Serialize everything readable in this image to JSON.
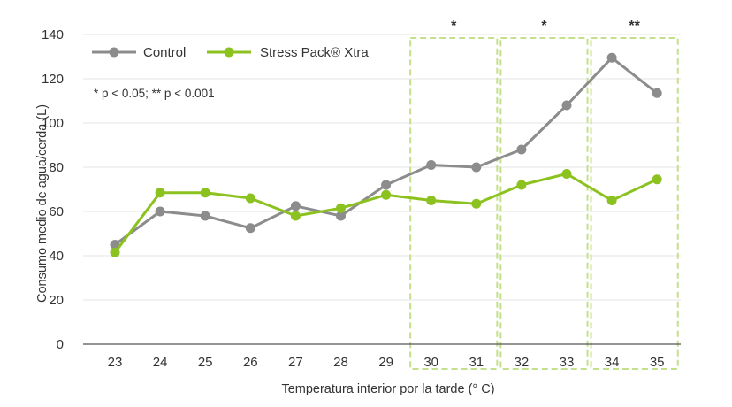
{
  "chart_data": {
    "type": "line",
    "title": "",
    "xlabel": "Temperatura interior por la tarde (° C)",
    "ylabel": "Consumo medio de agua/cerda (L)",
    "categories": [
      "23",
      "24",
      "25",
      "26",
      "27",
      "28",
      "29",
      "30",
      "31",
      "32",
      "33",
      "34",
      "35"
    ],
    "ylim": [
      0,
      140
    ],
    "yticks": [
      0,
      20,
      40,
      60,
      80,
      100,
      120,
      140
    ],
    "grid": true,
    "legend_position": "top-left",
    "series": [
      {
        "name": "Control",
        "color": "#8c8c8c",
        "values": [
          45,
          60,
          58,
          52.5,
          62.5,
          58,
          72,
          81,
          80,
          88,
          108,
          129.5,
          113.5
        ]
      },
      {
        "name": "Stress Pack® Xtra",
        "color": "#8cc21f",
        "values": [
          41.5,
          68.5,
          68.5,
          66,
          58,
          61.5,
          67.5,
          65,
          63.5,
          72,
          77,
          65,
          74.5
        ]
      }
    ],
    "note": "* p < 0.05; ** p < 0.001",
    "significance_groups": [
      {
        "categories": [
          "30",
          "31"
        ],
        "label": "*"
      },
      {
        "categories": [
          "32",
          "33"
        ],
        "label": "*"
      },
      {
        "categories": [
          "34",
          "35"
        ],
        "label": "**"
      }
    ],
    "highlight_color": "#c5e08c"
  }
}
